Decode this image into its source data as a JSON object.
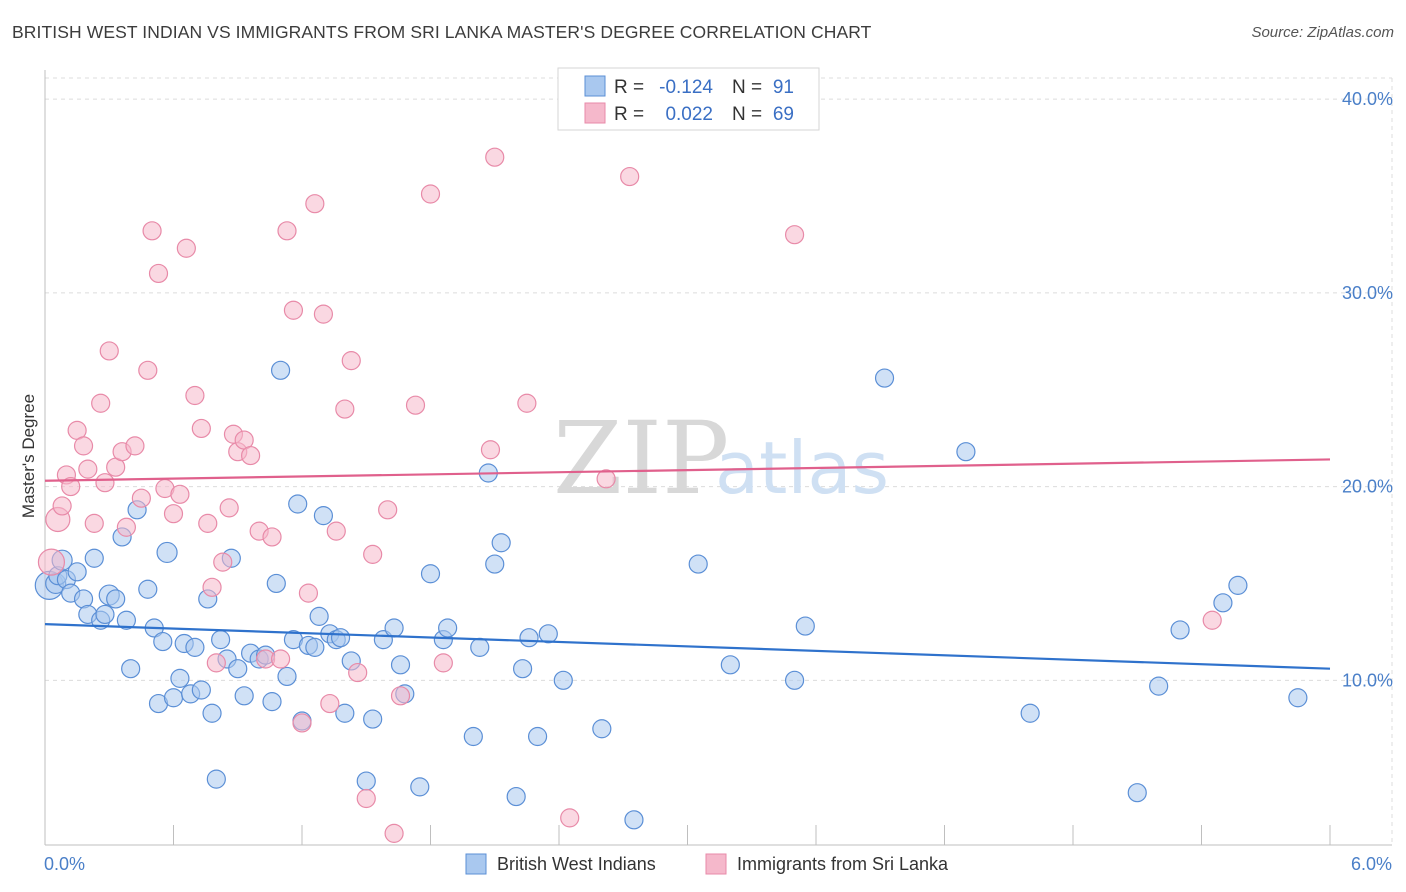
{
  "title": "BRITISH WEST INDIAN VS IMMIGRANTS FROM SRI LANKA MASTER'S DEGREE CORRELATION CHART",
  "source": "Source: ZipAtlas.com",
  "watermark": {
    "zip": "ZIP",
    "atlas": "atlas"
  },
  "legend": {
    "r_label": "R =",
    "n_label": "N =",
    "rows": [
      {
        "r": "-0.124",
        "n": "91"
      },
      {
        "r": "0.022",
        "n": "69"
      }
    ]
  },
  "chart_data": {
    "type": "scatter",
    "xlabel": "",
    "ylabel": "Master's Degree",
    "xlim": [
      0,
      6
    ],
    "ylim": [
      1.5,
      41.5
    ],
    "x_tick_labels": {
      "min": "0.0%",
      "max": "6.0%"
    },
    "y_ticks": [
      10,
      20,
      30,
      40
    ],
    "y_tick_labels": [
      "10.0%",
      "20.0%",
      "30.0%",
      "40.0%"
    ],
    "grid": true,
    "legend_position": "top-center",
    "colors": {
      "blue_fill": "#a9c8ef",
      "blue_edge": "#5b8fd6",
      "blue_line": "#2f72cc",
      "pink_fill": "#f5b8cb",
      "pink_edge": "#e88aa8",
      "pink_line": "#e0608c"
    },
    "series": [
      {
        "name": "British West Indians",
        "color": "blue",
        "trend": [
          [
            0,
            12.9
          ],
          [
            6,
            10.6
          ]
        ],
        "points": [
          [
            0.02,
            14.9,
            14
          ],
          [
            0.05,
            15.0,
            10
          ],
          [
            0.06,
            15.4,
            9
          ],
          [
            0.08,
            16.2,
            10
          ],
          [
            0.1,
            15.2,
            9
          ],
          [
            0.12,
            14.5,
            9
          ],
          [
            0.15,
            15.6,
            9
          ],
          [
            0.18,
            14.2,
            9
          ],
          [
            0.2,
            13.4,
            9
          ],
          [
            0.23,
            16.3,
            9
          ],
          [
            0.26,
            13.1,
            9
          ],
          [
            0.28,
            13.4,
            9
          ],
          [
            0.3,
            14.4,
            10
          ],
          [
            0.33,
            14.2,
            9
          ],
          [
            0.36,
            17.4,
            9
          ],
          [
            0.38,
            13.1,
            9
          ],
          [
            0.4,
            10.6,
            9
          ],
          [
            0.43,
            18.8,
            9
          ],
          [
            0.48,
            14.7,
            9
          ],
          [
            0.51,
            12.7,
            9
          ],
          [
            0.53,
            8.8,
            9
          ],
          [
            0.55,
            12.0,
            9
          ],
          [
            0.57,
            16.6,
            10
          ],
          [
            0.6,
            9.1,
            9
          ],
          [
            0.63,
            10.1,
            9
          ],
          [
            0.65,
            11.9,
            9
          ],
          [
            0.68,
            9.3,
            9
          ],
          [
            0.7,
            11.7,
            9
          ],
          [
            0.73,
            9.5,
            9
          ],
          [
            0.76,
            14.2,
            9
          ],
          [
            0.78,
            8.3,
            9
          ],
          [
            0.8,
            4.9,
            9
          ],
          [
            0.82,
            12.1,
            9
          ],
          [
            0.85,
            11.1,
            9
          ],
          [
            0.87,
            16.3,
            9
          ],
          [
            0.9,
            10.6,
            9
          ],
          [
            0.93,
            9.2,
            9
          ],
          [
            0.96,
            11.4,
            9
          ],
          [
            1.0,
            11.1,
            9
          ],
          [
            1.03,
            11.3,
            9
          ],
          [
            1.06,
            8.9,
            9
          ],
          [
            1.08,
            15.0,
            9
          ],
          [
            1.1,
            26.0,
            9
          ],
          [
            1.13,
            10.2,
            9
          ],
          [
            1.16,
            12.1,
            9
          ],
          [
            1.18,
            19.1,
            9
          ],
          [
            1.2,
            7.9,
            9
          ],
          [
            1.23,
            11.8,
            9
          ],
          [
            1.26,
            11.7,
            9
          ],
          [
            1.28,
            13.3,
            9
          ],
          [
            1.3,
            18.5,
            9
          ],
          [
            1.33,
            12.4,
            9
          ],
          [
            1.36,
            12.1,
            9
          ],
          [
            1.38,
            12.2,
            9
          ],
          [
            1.4,
            8.3,
            9
          ],
          [
            1.43,
            11.0,
            9
          ],
          [
            1.5,
            4.8,
            9
          ],
          [
            1.53,
            8.0,
            9
          ],
          [
            1.58,
            12.1,
            9
          ],
          [
            1.63,
            12.7,
            9
          ],
          [
            1.66,
            10.8,
            9
          ],
          [
            1.68,
            9.3,
            9
          ],
          [
            1.75,
            4.5,
            9
          ],
          [
            1.8,
            15.5,
            9
          ],
          [
            1.86,
            12.1,
            9
          ],
          [
            1.88,
            12.7,
            9
          ],
          [
            2.0,
            7.1,
            9
          ],
          [
            2.03,
            11.7,
            9
          ],
          [
            2.07,
            20.7,
            9
          ],
          [
            2.1,
            16.0,
            9
          ],
          [
            2.13,
            17.1,
            9
          ],
          [
            2.2,
            4.0,
            9
          ],
          [
            2.23,
            10.6,
            9
          ],
          [
            2.26,
            12.2,
            9
          ],
          [
            2.3,
            7.1,
            9
          ],
          [
            2.35,
            12.4,
            9
          ],
          [
            2.42,
            10.0,
            9
          ],
          [
            2.6,
            7.5,
            9
          ],
          [
            2.75,
            2.8,
            9
          ],
          [
            3.05,
            16.0,
            9
          ],
          [
            3.2,
            10.8,
            9
          ],
          [
            3.5,
            10.0,
            9
          ],
          [
            3.55,
            12.8,
            9
          ],
          [
            3.92,
            25.6,
            9
          ],
          [
            4.3,
            21.8,
            9
          ],
          [
            4.6,
            8.3,
            9
          ],
          [
            5.1,
            4.2,
            9
          ],
          [
            5.2,
            9.7,
            9
          ],
          [
            5.3,
            12.6,
            9
          ],
          [
            5.5,
            14.0,
            9
          ],
          [
            5.57,
            14.9,
            9
          ],
          [
            5.85,
            9.1,
            9
          ]
        ]
      },
      {
        "name": "Immigrants from Sri Lanka",
        "color": "pink",
        "trend": [
          [
            0,
            20.3
          ],
          [
            6,
            21.4
          ]
        ],
        "points": [
          [
            0.03,
            16.1,
            13
          ],
          [
            0.06,
            18.3,
            12
          ],
          [
            0.08,
            19.0,
            9
          ],
          [
            0.1,
            20.6,
            9
          ],
          [
            0.12,
            20.0,
            9
          ],
          [
            0.15,
            22.9,
            9
          ],
          [
            0.18,
            22.1,
            9
          ],
          [
            0.2,
            20.9,
            9
          ],
          [
            0.23,
            18.1,
            9
          ],
          [
            0.26,
            24.3,
            9
          ],
          [
            0.28,
            20.2,
            9
          ],
          [
            0.3,
            27.0,
            9
          ],
          [
            0.33,
            21.0,
            9
          ],
          [
            0.36,
            21.8,
            9
          ],
          [
            0.38,
            17.9,
            9
          ],
          [
            0.42,
            22.1,
            9
          ],
          [
            0.45,
            19.4,
            9
          ],
          [
            0.48,
            26.0,
            9
          ],
          [
            0.5,
            33.2,
            9
          ],
          [
            0.53,
            31.0,
            9
          ],
          [
            0.56,
            19.9,
            9
          ],
          [
            0.6,
            18.6,
            9
          ],
          [
            0.63,
            19.6,
            9
          ],
          [
            0.66,
            32.3,
            9
          ],
          [
            0.7,
            24.7,
            9
          ],
          [
            0.73,
            23.0,
            9
          ],
          [
            0.76,
            18.1,
            9
          ],
          [
            0.78,
            14.8,
            9
          ],
          [
            0.8,
            10.9,
            9
          ],
          [
            0.83,
            16.1,
            9
          ],
          [
            0.86,
            18.9,
            9
          ],
          [
            0.88,
            22.7,
            9
          ],
          [
            0.9,
            21.8,
            9
          ],
          [
            0.93,
            22.4,
            9
          ],
          [
            0.96,
            21.6,
            9
          ],
          [
            1.0,
            17.7,
            9
          ],
          [
            1.03,
            11.1,
            9
          ],
          [
            1.06,
            17.4,
            9
          ],
          [
            1.1,
            11.1,
            9
          ],
          [
            1.13,
            33.2,
            9
          ],
          [
            1.16,
            29.1,
            9
          ],
          [
            1.2,
            7.8,
            9
          ],
          [
            1.23,
            14.5,
            9
          ],
          [
            1.26,
            34.6,
            9
          ],
          [
            1.3,
            28.9,
            9
          ],
          [
            1.33,
            8.8,
            9
          ],
          [
            1.36,
            17.7,
            9
          ],
          [
            1.4,
            24.0,
            9
          ],
          [
            1.43,
            26.5,
            9
          ],
          [
            1.46,
            10.4,
            9
          ],
          [
            1.5,
            3.9,
            9
          ],
          [
            1.53,
            16.5,
            9
          ],
          [
            1.6,
            18.8,
            9
          ],
          [
            1.63,
            2.1,
            9
          ],
          [
            1.66,
            9.2,
            9
          ],
          [
            1.73,
            24.2,
            9
          ],
          [
            1.8,
            35.1,
            9
          ],
          [
            1.86,
            10.9,
            9
          ],
          [
            2.08,
            21.9,
            9
          ],
          [
            2.1,
            37.0,
            9
          ],
          [
            2.25,
            24.3,
            9
          ],
          [
            2.45,
            2.9,
            9
          ],
          [
            2.62,
            20.4,
            9
          ],
          [
            2.73,
            36.0,
            9
          ],
          [
            3.5,
            33.0,
            9
          ],
          [
            5.45,
            13.1,
            9
          ]
        ]
      }
    ]
  },
  "bottom_legend": [
    {
      "label": "British West Indians",
      "color": "blue"
    },
    {
      "label": "Immigrants from Sri Lanka",
      "color": "pink"
    }
  ]
}
